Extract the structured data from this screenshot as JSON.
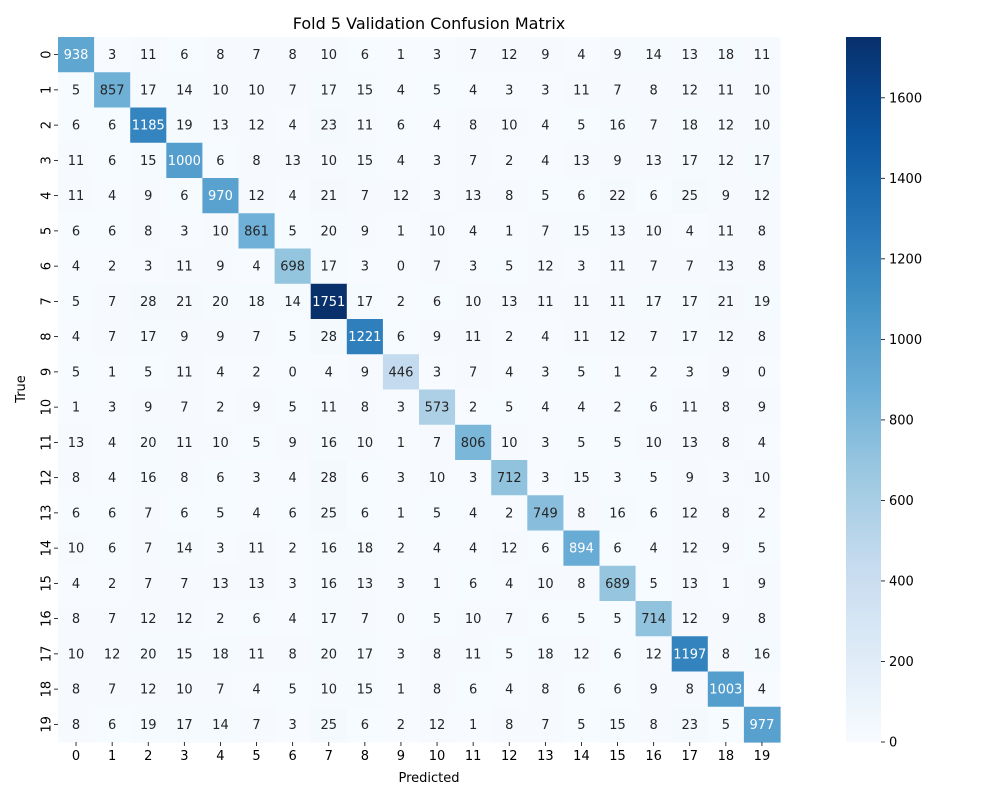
{
  "chart_data": {
    "type": "heatmap",
    "title": "Fold 5 Validation Confusion Matrix",
    "xlabel": "Predicted",
    "ylabel": "True",
    "x_categories": [
      "0",
      "1",
      "2",
      "3",
      "4",
      "5",
      "6",
      "7",
      "8",
      "9",
      "10",
      "11",
      "12",
      "13",
      "14",
      "15",
      "16",
      "17",
      "18",
      "19"
    ],
    "y_categories": [
      "0",
      "1",
      "2",
      "3",
      "4",
      "5",
      "6",
      "7",
      "8",
      "9",
      "10",
      "11",
      "12",
      "13",
      "14",
      "15",
      "16",
      "17",
      "18",
      "19"
    ],
    "matrix": [
      [
        938,
        3,
        11,
        6,
        8,
        7,
        8,
        10,
        6,
        1,
        3,
        7,
        12,
        9,
        4,
        9,
        14,
        13,
        18,
        11
      ],
      [
        5,
        857,
        17,
        14,
        10,
        10,
        7,
        17,
        15,
        4,
        5,
        4,
        3,
        3,
        11,
        7,
        8,
        12,
        11,
        10
      ],
      [
        6,
        6,
        1185,
        19,
        13,
        12,
        4,
        23,
        11,
        6,
        4,
        8,
        10,
        4,
        5,
        16,
        7,
        18,
        12,
        10
      ],
      [
        11,
        6,
        15,
        1000,
        6,
        8,
        13,
        10,
        15,
        4,
        3,
        7,
        2,
        4,
        13,
        9,
        13,
        17,
        12,
        17
      ],
      [
        11,
        4,
        9,
        6,
        970,
        12,
        4,
        21,
        7,
        12,
        3,
        13,
        8,
        5,
        6,
        22,
        6,
        25,
        9,
        12
      ],
      [
        6,
        6,
        8,
        3,
        10,
        861,
        5,
        20,
        9,
        1,
        10,
        4,
        1,
        7,
        15,
        13,
        10,
        4,
        11,
        8
      ],
      [
        4,
        2,
        3,
        11,
        9,
        4,
        698,
        17,
        3,
        0,
        7,
        3,
        5,
        12,
        3,
        11,
        7,
        7,
        13,
        8
      ],
      [
        5,
        7,
        28,
        21,
        20,
        18,
        14,
        1751,
        17,
        2,
        6,
        10,
        13,
        11,
        11,
        11,
        17,
        17,
        21,
        19
      ],
      [
        4,
        7,
        17,
        9,
        9,
        7,
        5,
        28,
        1221,
        6,
        9,
        11,
        2,
        4,
        11,
        12,
        7,
        17,
        12,
        8
      ],
      [
        5,
        1,
        5,
        11,
        4,
        2,
        0,
        4,
        9,
        446,
        3,
        7,
        4,
        3,
        5,
        1,
        2,
        3,
        9,
        0
      ],
      [
        1,
        3,
        9,
        7,
        2,
        9,
        5,
        11,
        8,
        3,
        573,
        2,
        5,
        4,
        4,
        2,
        6,
        11,
        8,
        9
      ],
      [
        13,
        4,
        20,
        11,
        10,
        5,
        9,
        16,
        10,
        1,
        7,
        806,
        10,
        3,
        5,
        5,
        10,
        13,
        8,
        4
      ],
      [
        8,
        4,
        16,
        8,
        6,
        3,
        4,
        28,
        6,
        3,
        10,
        3,
        712,
        3,
        15,
        3,
        5,
        9,
        3,
        10
      ],
      [
        6,
        6,
        7,
        6,
        5,
        4,
        6,
        25,
        6,
        1,
        5,
        4,
        2,
        749,
        8,
        16,
        6,
        12,
        8,
        2
      ],
      [
        10,
        6,
        7,
        14,
        3,
        11,
        2,
        16,
        18,
        2,
        4,
        4,
        12,
        6,
        894,
        6,
        4,
        12,
        9,
        5
      ],
      [
        4,
        2,
        7,
        7,
        13,
        13,
        3,
        16,
        13,
        3,
        1,
        6,
        4,
        10,
        8,
        689,
        5,
        13,
        1,
        9
      ],
      [
        8,
        7,
        12,
        12,
        2,
        6,
        4,
        17,
        7,
        0,
        5,
        10,
        7,
        6,
        5,
        5,
        714,
        12,
        9,
        8
      ],
      [
        10,
        12,
        20,
        15,
        18,
        11,
        8,
        20,
        17,
        3,
        8,
        11,
        5,
        18,
        12,
        6,
        12,
        1197,
        8,
        16
      ],
      [
        8,
        7,
        12,
        10,
        7,
        4,
        5,
        10,
        15,
        1,
        8,
        6,
        4,
        8,
        6,
        6,
        9,
        8,
        1003,
        4
      ],
      [
        8,
        6,
        19,
        17,
        14,
        7,
        3,
        25,
        6,
        2,
        12,
        1,
        8,
        7,
        5,
        15,
        8,
        23,
        5,
        977
      ]
    ],
    "colormap": "Blues",
    "vmin": 0,
    "vmax": 1751,
    "colorbar_ticks": [
      0,
      200,
      400,
      600,
      800,
      1000,
      1200,
      1400,
      1600
    ],
    "colors": {
      "low": "#f7fbff",
      "high": "#08306b"
    },
    "grid": false
  }
}
